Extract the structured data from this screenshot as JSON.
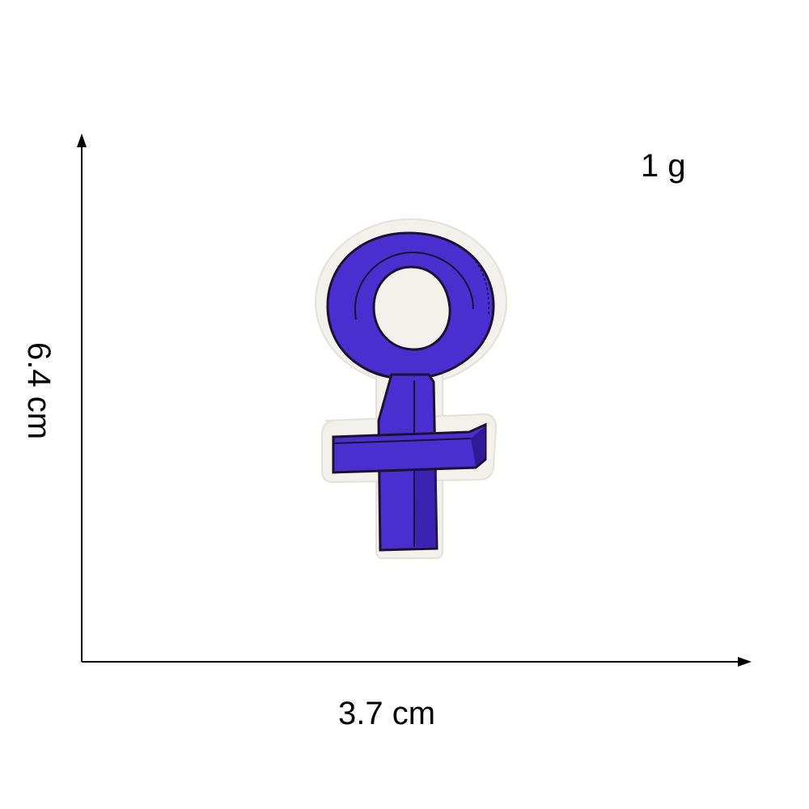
{
  "measurements": {
    "weight": "1 g",
    "width": "3.7 cm",
    "height": "6.4 cm"
  },
  "product": {
    "icon": "venus-symbol-icon",
    "thread_color": "#4a2fd0",
    "thread_shadow_color": "#2e1a96",
    "backing_color": "#f3f1ec",
    "outline_color": "#1a1230"
  },
  "axis_color": "#000000"
}
